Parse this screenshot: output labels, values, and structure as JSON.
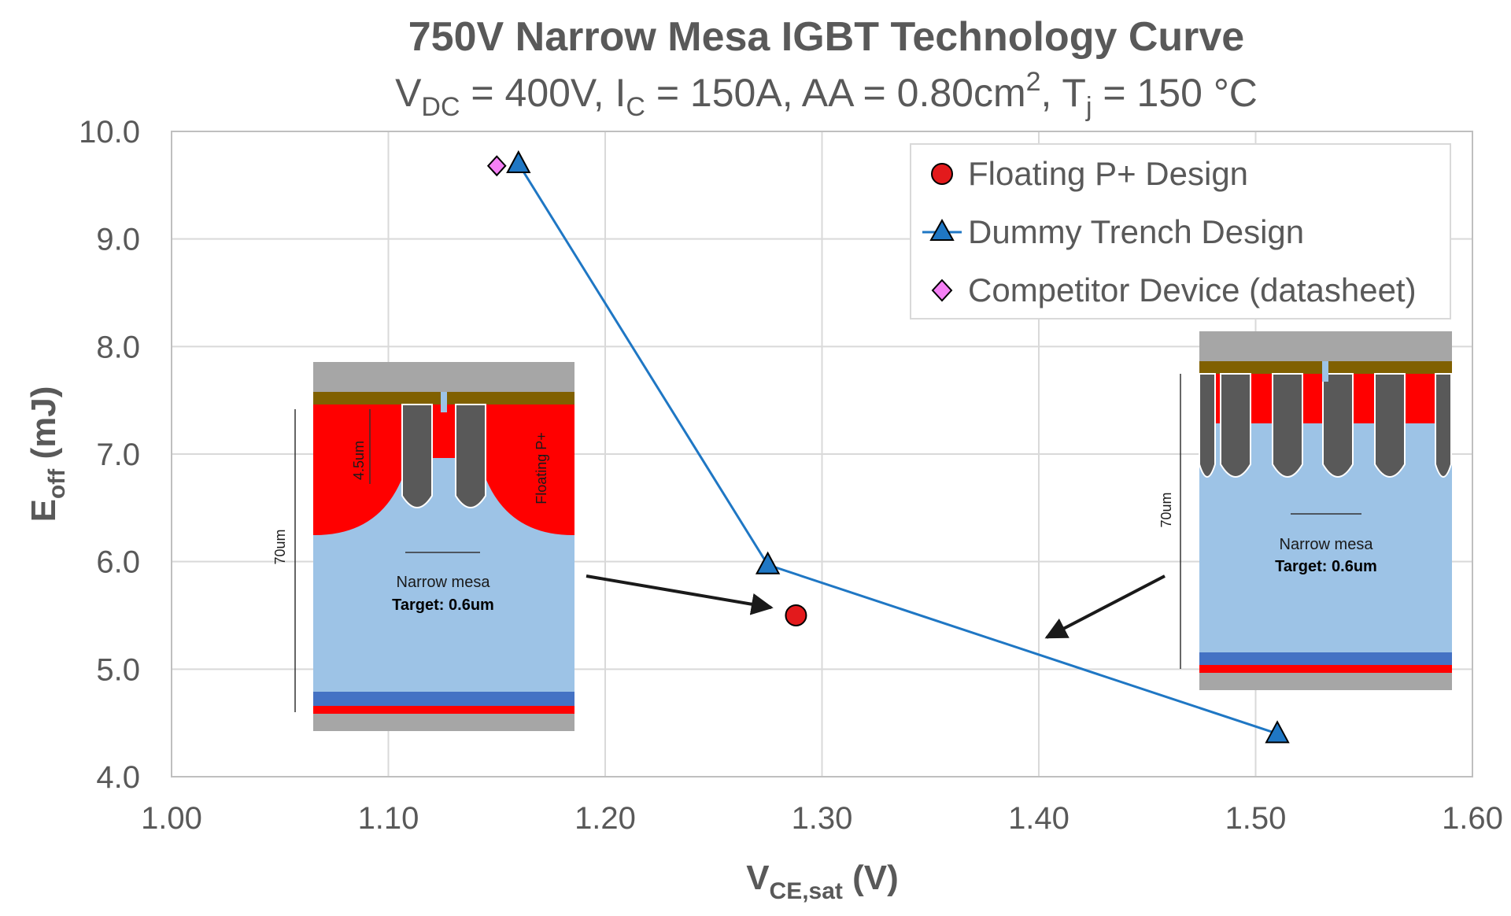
{
  "chart_data": {
    "type": "scatter",
    "title": "750V Narrow Mesa IGBT Technology Curve",
    "subtitle": {
      "p1": "V",
      "p1_sub": "DC",
      "p2": " = 400V, I",
      "p2_sub": "C",
      "p3": " = 150A, AA = 0.80cm",
      "p3_sup": "2",
      "p4": ", T",
      "p4_sub": "j",
      "p5": " = 150 °C"
    },
    "xlabel": {
      "main": "V",
      "sub": "CE,sat",
      "rest": " (V)"
    },
    "ylabel": {
      "main": "E",
      "sub": "off",
      "rest": " (mJ)"
    },
    "xlim": [
      1.0,
      1.6
    ],
    "ylim": [
      4.0,
      10.0
    ],
    "x_ticks": [
      1.0,
      1.1,
      1.2,
      1.3,
      1.4,
      1.5,
      1.6
    ],
    "x_tick_labels": [
      "1.00",
      "1.10",
      "1.20",
      "1.30",
      "1.40",
      "1.50",
      "1.60"
    ],
    "y_ticks": [
      4,
      5,
      6,
      7,
      8,
      9,
      10
    ],
    "y_tick_labels": [
      "4.0",
      "5.0",
      "6.0",
      "7.0",
      "8.0",
      "9.0",
      "10.0"
    ],
    "grid": true,
    "legend_position": "top-right",
    "series": [
      {
        "name": "Floating P+ Design",
        "marker": "circle",
        "color": "#e31a1c",
        "line": false,
        "points": [
          [
            1.288,
            5.5
          ]
        ]
      },
      {
        "name": "Dummy Trench Design",
        "marker": "triangle",
        "color": "#1f77c4",
        "line": true,
        "points": [
          [
            1.16,
            9.7
          ],
          [
            1.275,
            5.97
          ],
          [
            1.51,
            4.4
          ]
        ]
      },
      {
        "name": "Competitor Device (datasheet)",
        "marker": "diamond",
        "color": "#f580f5",
        "line": false,
        "points": [
          [
            1.15,
            9.68
          ]
        ]
      }
    ]
  },
  "insets": {
    "left": {
      "depth_label": "70um",
      "trench_depth_label": "4.5um",
      "region_label": "Floating P+",
      "mesa_label": "Narrow mesa",
      "target_label": "Target: 0.6um"
    },
    "right": {
      "depth_label": "70um",
      "mesa_label": "Narrow mesa",
      "target_label": "Target: 0.6um"
    }
  },
  "colors": {
    "metal": "#a6a6a6",
    "oxide": "#806000",
    "p_region": "#ff0000",
    "drift": "#9dc3e6",
    "field_stop": "#4472c4",
    "trench": "#595959",
    "grid": "#d9d9d9",
    "axis": "#bfbfbf"
  }
}
